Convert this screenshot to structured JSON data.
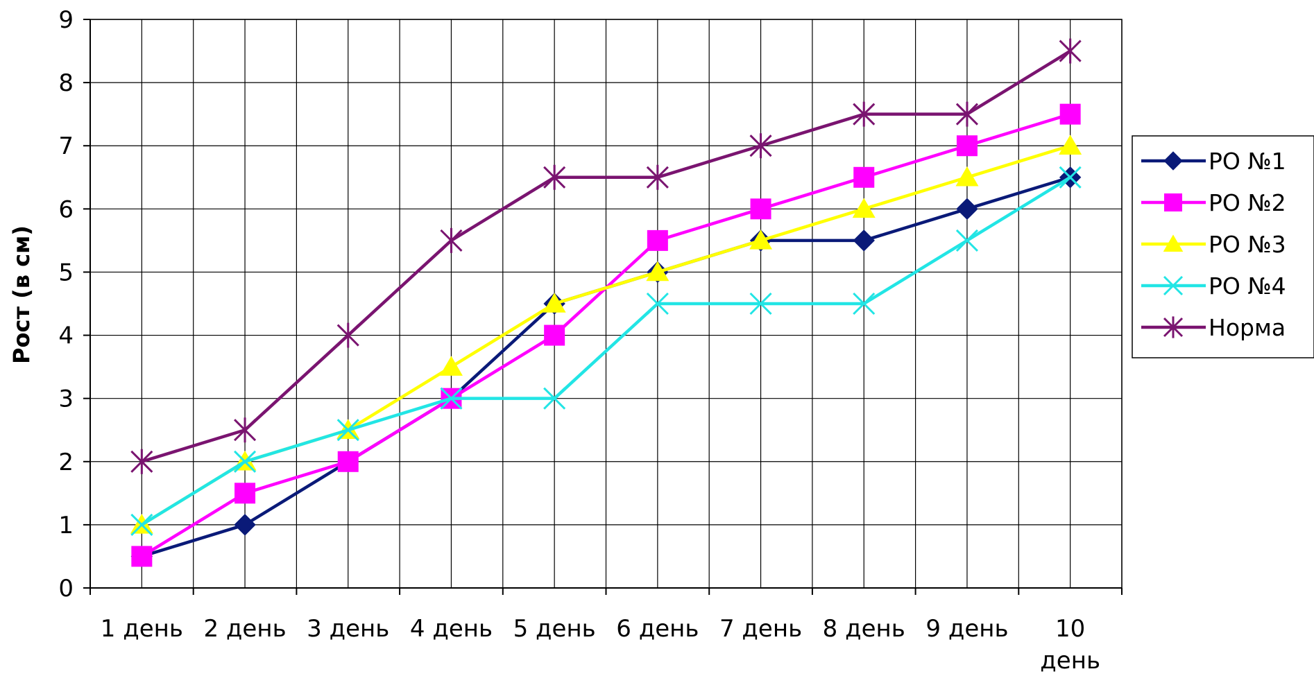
{
  "chart_data": {
    "type": "line",
    "title": "",
    "xlabel": "",
    "ylabel": "Рост (в см)",
    "ylim": [
      0,
      9
    ],
    "yticks": [
      0,
      1,
      2,
      3,
      4,
      5,
      6,
      7,
      8,
      9
    ],
    "grid": true,
    "legend_position": "right",
    "categories": [
      [
        "1 день"
      ],
      [
        "2 день"
      ],
      [
        "3 день"
      ],
      [
        "4 день"
      ],
      [
        "5 день"
      ],
      [
        "6 день"
      ],
      [
        "7 день"
      ],
      [
        "8 день"
      ],
      [
        "9 день"
      ],
      [
        "10",
        "день"
      ]
    ],
    "series": [
      {
        "name": "РО №1",
        "color": "#0a1a78",
        "marker": "diamond",
        "values": [
          0.5,
          1,
          2,
          3,
          4.5,
          5,
          5.5,
          5.5,
          6,
          6.5
        ]
      },
      {
        "name": "РО №2",
        "color": "#ff00ff",
        "marker": "square",
        "values": [
          0.5,
          1.5,
          2,
          3,
          4,
          5.5,
          6,
          6.5,
          7,
          7.5
        ]
      },
      {
        "name": "РО №3",
        "color": "#ffff00",
        "marker": "triangle",
        "values": [
          1,
          2,
          2.5,
          3.5,
          4.5,
          5,
          5.5,
          6,
          6.5,
          7
        ]
      },
      {
        "name": "РО №4",
        "color": "#22e5e5",
        "marker": "x",
        "values": [
          1,
          2,
          2.5,
          3,
          3,
          4.5,
          4.5,
          4.5,
          5.5,
          6.5
        ]
      },
      {
        "name": "Норма",
        "color": "#7a1470",
        "marker": "star",
        "values": [
          2,
          2.5,
          4,
          5.5,
          6.5,
          6.5,
          7,
          7.5,
          7.5,
          8.5
        ]
      }
    ]
  }
}
